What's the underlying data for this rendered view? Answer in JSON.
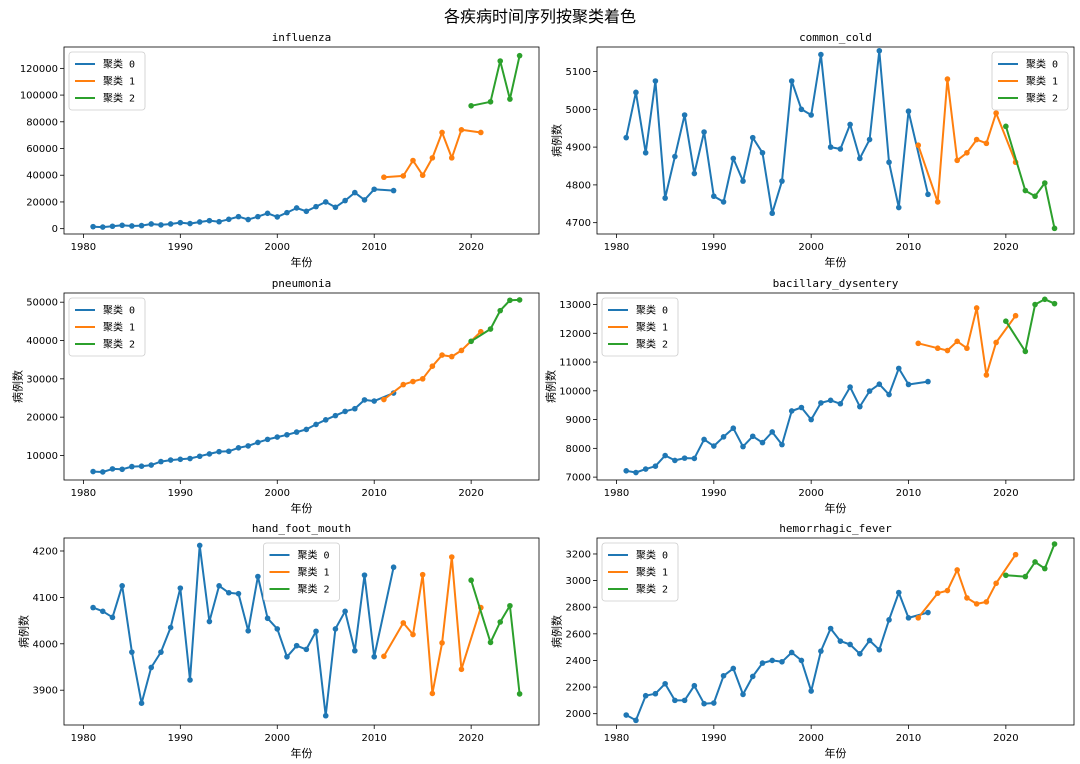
{
  "figure": {
    "suptitle": "各疾病时间序列按聚类着色"
  },
  "colors": {
    "cluster0": "#1f77b4",
    "cluster1": "#ff7f0e",
    "cluster2": "#2ca02c"
  },
  "chart_data": [
    {
      "type": "line",
      "title": "influenza",
      "xlabel": "年份",
      "ylabel": "",
      "xlim": [
        1978,
        2027
      ],
      "ylim": [
        -4000,
        136000
      ],
      "yticks": [
        0,
        20000,
        40000,
        60000,
        80000,
        100000,
        120000
      ],
      "xticks": [
        1980,
        1990,
        2000,
        2010,
        2020
      ],
      "legend": "upper-left",
      "legend_labels": [
        "聚类 0",
        "聚类 1",
        "聚类 2"
      ],
      "series": [
        {
          "cluster": 0,
          "x": [
            1981,
            1982,
            1983,
            1984,
            1985,
            1986,
            1987,
            1988,
            1989,
            1990,
            1991,
            1992,
            1993,
            1994,
            1995,
            1996,
            1997,
            1998,
            1999,
            2000,
            2001,
            2002,
            2003,
            2004,
            2005,
            2006,
            2007,
            2008,
            2009,
            2010,
            2012
          ],
          "y": [
            1500,
            1200,
            1800,
            2500,
            2000,
            2300,
            3500,
            2800,
            3500,
            4500,
            3800,
            5000,
            6000,
            5200,
            7000,
            9000,
            6800,
            9000,
            11500,
            8800,
            12000,
            15500,
            13000,
            16500,
            20000,
            16000,
            21000,
            27000,
            21500,
            29500,
            28500
          ]
        },
        {
          "cluster": 1,
          "x": [
            2011,
            2013,
            2014,
            2015,
            2016,
            2017,
            2018,
            2019,
            2021
          ],
          "y": [
            38500,
            39500,
            51000,
            40000,
            53000,
            72000,
            53000,
            74000,
            72000
          ]
        },
        {
          "cluster": 2,
          "x": [
            2020,
            2022,
            2023,
            2024,
            2025
          ],
          "y": [
            92000,
            95000,
            125500,
            97000,
            129500
          ]
        }
      ]
    },
    {
      "type": "line",
      "title": "common_cold",
      "xlabel": "年份",
      "ylabel": "病例数",
      "xlim": [
        1978,
        2027
      ],
      "ylim": [
        4670,
        5165
      ],
      "yticks": [
        4700,
        4800,
        4900,
        5000,
        5100
      ],
      "xticks": [
        1980,
        1990,
        2000,
        2010,
        2020
      ],
      "legend": "upper-right",
      "legend_labels": [
        "聚类 0",
        "聚类 1",
        "聚类 2"
      ],
      "series": [
        {
          "cluster": 0,
          "x": [
            1981,
            1982,
            1983,
            1984,
            1985,
            1986,
            1987,
            1988,
            1989,
            1990,
            1991,
            1992,
            1993,
            1994,
            1995,
            1996,
            1997,
            1998,
            1999,
            2000,
            2001,
            2002,
            2003,
            2004,
            2005,
            2006,
            2007,
            2008,
            2009,
            2010,
            2012
          ],
          "y": [
            4925,
            5045,
            4885,
            5075,
            4765,
            4875,
            4985,
            4830,
            4940,
            4770,
            4755,
            4870,
            4810,
            4925,
            4885,
            4725,
            4810,
            5075,
            5000,
            4985,
            5145,
            4900,
            4895,
            4960,
            4870,
            4920,
            5155,
            4860,
            4740,
            4995,
            4775
          ]
        },
        {
          "cluster": 1,
          "x": [
            2011,
            2013,
            2014,
            2015,
            2016,
            2017,
            2018,
            2019,
            2021
          ],
          "y": [
            4905,
            4755,
            5080,
            4865,
            4885,
            4920,
            4910,
            4990,
            4860
          ]
        },
        {
          "cluster": 2,
          "x": [
            2020,
            2022,
            2023,
            2024,
            2025
          ],
          "y": [
            4955,
            4785,
            4770,
            4805,
            4685
          ]
        }
      ]
    },
    {
      "type": "line",
      "title": "pneumonia",
      "xlabel": "年份",
      "ylabel": "病例数",
      "xlim": [
        1978,
        2027
      ],
      "ylim": [
        3600,
        52400
      ],
      "yticks": [
        10000,
        20000,
        30000,
        40000,
        50000
      ],
      "xticks": [
        1980,
        1990,
        2000,
        2010,
        2020
      ],
      "legend": "upper-left",
      "legend_labels": [
        "聚类 0",
        "聚类 1",
        "聚类 2"
      ],
      "series": [
        {
          "cluster": 0,
          "x": [
            1981,
            1982,
            1983,
            1984,
            1985,
            1986,
            1987,
            1988,
            1989,
            1990,
            1991,
            1992,
            1993,
            1994,
            1995,
            1996,
            1997,
            1998,
            1999,
            2000,
            2001,
            2002,
            2003,
            2004,
            2005,
            2006,
            2007,
            2008,
            2009,
            2010,
            2012
          ],
          "y": [
            5800,
            5700,
            6500,
            6400,
            7100,
            7200,
            7500,
            8400,
            8800,
            9000,
            9200,
            9800,
            10400,
            11000,
            11100,
            12000,
            12500,
            13400,
            14200,
            14800,
            15400,
            16100,
            16800,
            18100,
            19300,
            20400,
            21500,
            22200,
            24500,
            24200,
            26300
          ]
        },
        {
          "cluster": 1,
          "x": [
            2011,
            2013,
            2014,
            2015,
            2016,
            2017,
            2018,
            2019,
            2021
          ],
          "y": [
            24600,
            28500,
            29300,
            30000,
            33300,
            36200,
            35800,
            37400,
            42300
          ]
        },
        {
          "cluster": 2,
          "x": [
            2020,
            2022,
            2023,
            2024,
            2025
          ],
          "y": [
            39800,
            43000,
            47800,
            50500,
            50600
          ]
        }
      ]
    },
    {
      "type": "line",
      "title": "bacillary_dysentery",
      "xlabel": "年份",
      "ylabel": "病例数",
      "xlim": [
        1978,
        2027
      ],
      "ylim": [
        6900,
        13400
      ],
      "yticks": [
        7000,
        8000,
        9000,
        10000,
        11000,
        12000,
        13000
      ],
      "xticks": [
        1980,
        1990,
        2000,
        2010,
        2020
      ],
      "legend": "upper-left",
      "legend_labels": [
        "聚类 0",
        "聚类 1",
        "聚类 2"
      ],
      "series": [
        {
          "cluster": 0,
          "x": [
            1981,
            1982,
            1983,
            1984,
            1985,
            1986,
            1987,
            1988,
            1989,
            1990,
            1991,
            1992,
            1993,
            1994,
            1995,
            1996,
            1997,
            1998,
            1999,
            2000,
            2001,
            2002,
            2003,
            2004,
            2005,
            2006,
            2007,
            2008,
            2009,
            2010,
            2012
          ],
          "y": [
            7220,
            7160,
            7280,
            7380,
            7750,
            7580,
            7660,
            7650,
            8310,
            8080,
            8400,
            8700,
            8060,
            8420,
            8200,
            8570,
            8130,
            9300,
            9420,
            9000,
            9580,
            9670,
            9550,
            10130,
            9450,
            9990,
            10230,
            9870,
            10780,
            10220,
            10320
          ]
        },
        {
          "cluster": 1,
          "x": [
            2011,
            2013,
            2014,
            2015,
            2016,
            2017,
            2018,
            2019,
            2021
          ],
          "y": [
            11650,
            11480,
            11400,
            11720,
            11480,
            12880,
            10550,
            11680,
            12610
          ]
        },
        {
          "cluster": 2,
          "x": [
            2020,
            2022,
            2023,
            2024,
            2025
          ],
          "y": [
            12420,
            11370,
            13000,
            13180,
            13030
          ]
        }
      ]
    },
    {
      "type": "line",
      "title": "hand_foot_mouth",
      "xlabel": "年份",
      "ylabel": "病例数",
      "xlim": [
        1978,
        2027
      ],
      "ylim": [
        3825,
        4228
      ],
      "yticks": [
        3900,
        4000,
        4100,
        4200
      ],
      "xticks": [
        1980,
        1990,
        2000,
        2010,
        2020
      ],
      "legend": "upper-center",
      "legend_labels": [
        "聚类 0",
        "聚类 1",
        "聚类 2"
      ],
      "series": [
        {
          "cluster": 0,
          "x": [
            1981,
            1982,
            1983,
            1984,
            1985,
            1986,
            1987,
            1988,
            1989,
            1990,
            1991,
            1992,
            1993,
            1994,
            1995,
            1996,
            1997,
            1998,
            1999,
            2000,
            2001,
            2002,
            2003,
            2004,
            2005,
            2006,
            2007,
            2008,
            2009,
            2010,
            2012
          ],
          "y": [
            4078,
            4070,
            4057,
            4125,
            3982,
            3872,
            3949,
            3982,
            4035,
            4120,
            3922,
            4212,
            4048,
            4125,
            4110,
            4108,
            4028,
            4145,
            4055,
            4032,
            3972,
            3996,
            3988,
            4027,
            3845,
            4032,
            4070,
            3985,
            4148,
            3972,
            4165
          ]
        },
        {
          "cluster": 1,
          "x": [
            2011,
            2013,
            2014,
            2015,
            2016,
            2017,
            2018,
            2019,
            2021
          ],
          "y": [
            3973,
            4045,
            4020,
            4149,
            3893,
            4002,
            4187,
            3945,
            4078
          ]
        },
        {
          "cluster": 2,
          "x": [
            2020,
            2022,
            2023,
            2024,
            2025
          ],
          "y": [
            4137,
            4003,
            4047,
            4082,
            3892
          ]
        }
      ]
    },
    {
      "type": "line",
      "title": "hemorrhagic_fever",
      "xlabel": "年份",
      "ylabel": "病例数",
      "xlim": [
        1978,
        2027
      ],
      "ylim": [
        1915,
        3320
      ],
      "yticks": [
        2000,
        2200,
        2400,
        2600,
        2800,
        3000,
        3200
      ],
      "xticks": [
        1980,
        1990,
        2000,
        2010,
        2020
      ],
      "legend": "upper-left",
      "legend_labels": [
        "聚类 0",
        "聚类 1",
        "聚类 2"
      ],
      "series": [
        {
          "cluster": 0,
          "x": [
            1981,
            1982,
            1983,
            1984,
            1985,
            1986,
            1987,
            1988,
            1989,
            1990,
            1991,
            1992,
            1993,
            1994,
            1995,
            1996,
            1997,
            1998,
            1999,
            2000,
            2001,
            2002,
            2003,
            2004,
            2005,
            2006,
            2007,
            2008,
            2009,
            2010,
            2012
          ],
          "y": [
            1990,
            1950,
            2135,
            2150,
            2225,
            2100,
            2100,
            2210,
            2075,
            2080,
            2285,
            2340,
            2145,
            2280,
            2380,
            2400,
            2390,
            2460,
            2400,
            2170,
            2470,
            2640,
            2545,
            2520,
            2450,
            2550,
            2480,
            2705,
            2910,
            2720,
            2760
          ]
        },
        {
          "cluster": 1,
          "x": [
            2011,
            2013,
            2014,
            2015,
            2016,
            2017,
            2018,
            2019,
            2021
          ],
          "y": [
            2720,
            2905,
            2925,
            3080,
            2870,
            2825,
            2840,
            2980,
            3195
          ]
        },
        {
          "cluster": 2,
          "x": [
            2020,
            2022,
            2023,
            2024,
            2025
          ],
          "y": [
            3040,
            3030,
            3140,
            3090,
            3275
          ]
        }
      ]
    }
  ]
}
